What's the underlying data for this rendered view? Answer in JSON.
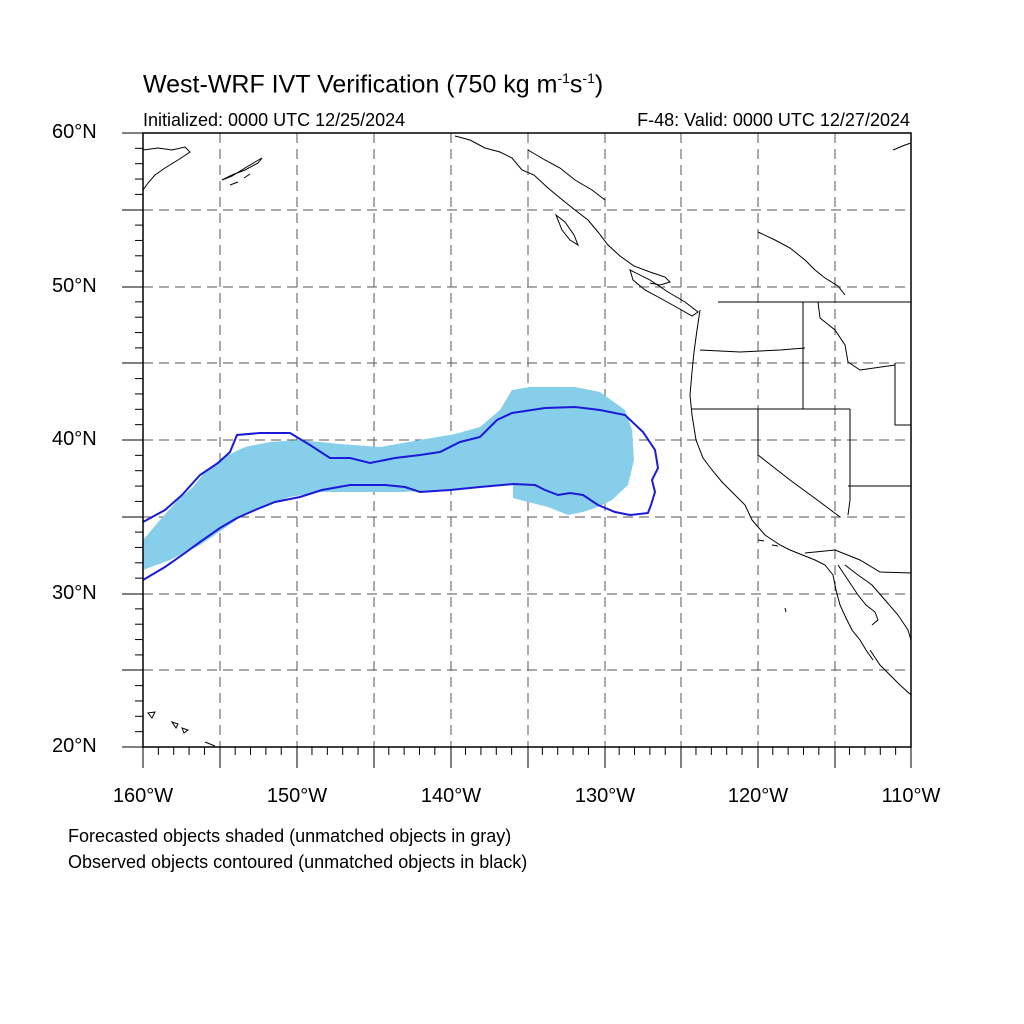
{
  "title": {
    "main": "West-WRF IVT Verification (750 kg m",
    "unit_exp1": "-1",
    "unit_mid": "s",
    "unit_exp2": "-1",
    "close": ")"
  },
  "initialized": "Initialized: 0000 UTC 12/25/2024",
  "valid": "F-48: Valid: 0000 UTC 12/27/2024",
  "lat_labels": [
    "60°N",
    "50°N",
    "40°N",
    "30°N",
    "20°N"
  ],
  "lon_labels": [
    "160°W",
    "150°W",
    "140°W",
    "130°W",
    "120°W",
    "110°W"
  ],
  "legend": {
    "forecast_note": "Forecasted objects shaded (unmatched objects in gray)",
    "observed_note": "Observed objects contoured (unmatched objects in black)"
  },
  "colors": {
    "forecast_fill": "#87CEEB",
    "observed_contour": "#1a1ad9",
    "coastline": "#000000",
    "grid": "#555555"
  },
  "map_extent": {
    "lon_min": -160,
    "lon_max": -110,
    "lat_min": 20,
    "lat_max": 60,
    "grid_spacing_deg": 5
  }
}
